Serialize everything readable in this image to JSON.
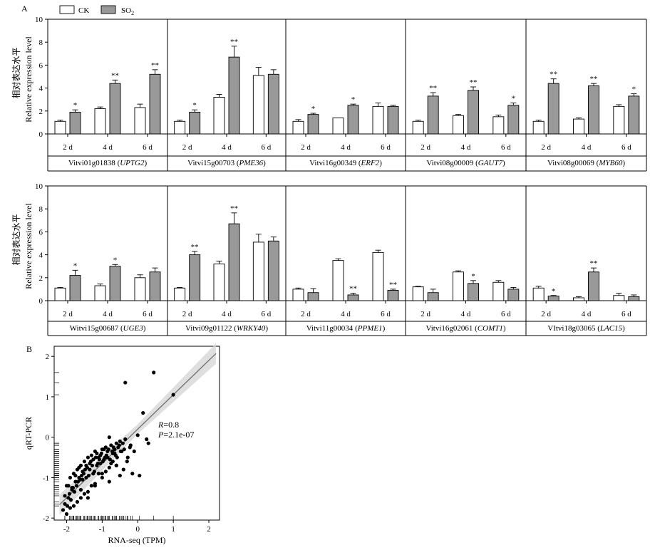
{
  "figure": {
    "panel_a_label": "A",
    "panel_b_label": "B",
    "ylabel_cn": "相对表达水平",
    "ylabel_en": "Relative expression level",
    "legend": [
      {
        "label": "CK",
        "color": "#ffffff"
      },
      {
        "label": "SO",
        "sub": "2",
        "color": "#999999"
      }
    ],
    "days": [
      "2 d",
      "4 d",
      "6 d"
    ],
    "yticks": [
      "0",
      "2",
      "4",
      "6",
      "8",
      "10"
    ]
  },
  "chart_data": [
    {
      "type": "bar",
      "title": "",
      "ylabel": "Relative expression level",
      "ylim": [
        0,
        10
      ],
      "categories": [
        "2 d",
        "4 d",
        "6 d"
      ],
      "series_names": [
        "CK",
        "SO2"
      ],
      "panels": [
        {
          "gene_id": "Vitvi01g01838",
          "gene_name": "UPTG2",
          "ck": [
            1.1,
            2.2,
            2.3
          ],
          "ck_err": [
            0.1,
            0.15,
            0.3
          ],
          "so2": [
            1.9,
            4.4,
            5.2
          ],
          "so2_err": [
            0.2,
            0.3,
            0.4
          ],
          "sig": [
            "*",
            "**",
            "**"
          ]
        },
        {
          "gene_id": "Vitvi15g00703",
          "gene_name": "PME36",
          "ck": [
            1.1,
            3.2,
            5.1
          ],
          "ck_err": [
            0.1,
            0.25,
            0.7
          ],
          "so2": [
            1.9,
            6.7,
            5.2
          ],
          "so2_err": [
            0.2,
            0.95,
            0.4
          ],
          "sig": [
            "*",
            "**",
            ""
          ]
        },
        {
          "gene_id": "Vitvi16g00349",
          "gene_name": "ERF2",
          "ck": [
            1.1,
            1.4,
            2.4
          ],
          "ck_err": [
            0.15,
            0.0,
            0.3
          ],
          "so2": [
            1.7,
            2.5,
            2.4
          ],
          "so2_err": [
            0.1,
            0.1,
            0.1
          ],
          "sig": [
            "*",
            "*",
            ""
          ]
        },
        {
          "gene_id": "Vitvi08g00009",
          "gene_name": "GAUT7",
          "ck": [
            1.1,
            1.6,
            1.5
          ],
          "ck_err": [
            0.1,
            0.1,
            0.15
          ],
          "so2": [
            3.3,
            3.8,
            2.5
          ],
          "so2_err": [
            0.3,
            0.3,
            0.2
          ],
          "sig": [
            "**",
            "**",
            "*"
          ]
        },
        {
          "gene_id": "Vitvi08g00069",
          "gene_name": "MYB60",
          "ck": [
            1.1,
            1.3,
            2.4
          ],
          "ck_err": [
            0.1,
            0.1,
            0.15
          ],
          "so2": [
            4.4,
            4.2,
            3.3
          ],
          "so2_err": [
            0.4,
            0.2,
            0.2
          ],
          "sig": [
            "**",
            "**",
            "*"
          ]
        },
        {
          "gene_id": "Witvi15g00687",
          "gene_name": "UGE3",
          "ck": [
            1.1,
            1.3,
            2.0
          ],
          "ck_err": [
            0.05,
            0.15,
            0.25
          ],
          "so2": [
            2.2,
            3.0,
            2.5
          ],
          "so2_err": [
            0.45,
            0.15,
            0.35
          ],
          "sig": [
            "*",
            "*",
            ""
          ]
        },
        {
          "gene_id": "Vitvi09g01122",
          "gene_name": "WRKY40",
          "ck": [
            1.1,
            3.2,
            5.1
          ],
          "ck_err": [
            0.05,
            0.25,
            0.7
          ],
          "so2": [
            4.0,
            6.7,
            5.2
          ],
          "so2_err": [
            0.3,
            0.95,
            0.35
          ],
          "sig": [
            "**",
            "**",
            ""
          ]
        },
        {
          "gene_id": "Vitvi11g00034",
          "gene_name": "PPME1",
          "ck": [
            1.0,
            3.5,
            4.2
          ],
          "ck_err": [
            0.1,
            0.15,
            0.2
          ],
          "so2": [
            0.7,
            0.5,
            0.9
          ],
          "so2_err": [
            0.35,
            0.15,
            0.1
          ],
          "sig": [
            "",
            "**",
            "**"
          ]
        },
        {
          "gene_id": "Vitvi16g02061",
          "gene_name": "COMT1",
          "ck": [
            1.2,
            2.5,
            1.6
          ],
          "ck_err": [
            0.05,
            0.1,
            0.15
          ],
          "so2": [
            0.7,
            1.5,
            1.0
          ],
          "so2_err": [
            0.3,
            0.25,
            0.15
          ],
          "sig": [
            "",
            "*",
            ""
          ]
        },
        {
          "gene_id": "VItvi18g03065",
          "gene_name": "LAC15",
          "ck": [
            1.1,
            0.25,
            0.45
          ],
          "ck_err": [
            0.15,
            0.1,
            0.2
          ],
          "so2": [
            0.4,
            2.5,
            0.35
          ],
          "so2_err": [
            0.05,
            0.35,
            0.15
          ],
          "sig": [
            "*",
            "**",
            ""
          ]
        }
      ]
    },
    {
      "type": "scatter",
      "title": "",
      "xlabel": "RNA-seq (TPM)",
      "ylabel": "qRT-PCR",
      "xlim": [
        -2.35,
        2.3
      ],
      "ylim": [
        -2.05,
        2.25
      ],
      "xticks": [
        "-2",
        "-1",
        "0",
        "1",
        "2"
      ],
      "yticks": [
        "-2",
        "-1",
        "0",
        "1",
        "2"
      ],
      "annotation_r_label": "R",
      "annotation_r_value": "=0.8",
      "annotation_p_label": "P",
      "annotation_p_value": "=2.1e-07",
      "fit": {
        "slope": 0.85,
        "intercept": 0.2
      },
      "points_x": [
        1.0,
        0.0,
        -0.35,
        0.15,
        0.45,
        0.25,
        -0.2,
        -0.35,
        -0.6,
        -0.8,
        -1.0,
        -1.2,
        -1.4,
        -1.6,
        -1.8,
        -2.0,
        -1.9,
        -1.7,
        -1.5,
        -1.3,
        -1.1,
        -0.9,
        -0.7,
        -0.5,
        -0.3,
        -1.95,
        -1.85,
        -1.75,
        -1.65,
        -1.55,
        -1.45,
        -1.35,
        -1.25,
        -1.15,
        -1.05,
        -0.95,
        -0.85,
        -0.75,
        -0.65,
        -0.55,
        -0.45,
        -2.1,
        -2.05,
        -1.98,
        -1.92,
        -1.88,
        -1.82,
        -1.78,
        -1.72,
        -1.68,
        -1.62,
        -1.58,
        -1.52,
        -1.48,
        -1.42,
        -1.38,
        -1.32,
        -1.28,
        -1.22,
        -1.18,
        -1.12,
        -1.08,
        -1.02,
        -0.98,
        -0.92,
        -0.88,
        -0.82,
        -0.78,
        -0.72,
        -0.68,
        -0.62,
        -0.58,
        -0.52,
        -0.48,
        -0.42,
        -0.38,
        -0.28,
        -0.22,
        -0.15,
        -0.1,
        0.05,
        0.3,
        -1.6,
        -1.4,
        -1.2,
        -1.0,
        -0.8,
        -0.6,
        -0.4,
        -1.9,
        -1.7,
        -1.5,
        -1.3,
        -1.1,
        -0.9,
        -0.7,
        -0.5,
        -2.0,
        -1.8,
        -1.6,
        -1.4,
        -1.2,
        -1.0,
        -0.8,
        -0.6,
        -1.95,
        -1.75,
        -1.55,
        -1.35,
        -1.15,
        -0.95,
        -0.75,
        -2.05,
        -1.85,
        -1.65,
        -1.45,
        -1.25,
        -1.05,
        -0.85,
        -0.65
      ],
      "points_y": [
        1.05,
        0.05,
        1.35,
        0.6,
        1.6,
        -0.05,
        -0.2,
        -0.05,
        -0.15,
        0.0,
        -0.3,
        -0.35,
        -0.5,
        -0.7,
        -0.9,
        -1.2,
        -1.0,
        -0.8,
        -0.6,
        -0.45,
        -0.5,
        -0.25,
        -0.4,
        -0.1,
        -0.6,
        -1.5,
        -1.3,
        -1.1,
        -1.0,
        -0.85,
        -0.7,
        -0.65,
        -0.55,
        -0.4,
        -0.45,
        -0.3,
        -0.35,
        -0.2,
        -0.3,
        -0.25,
        -0.35,
        -1.8,
        -1.65,
        -1.7,
        -1.4,
        -1.55,
        -1.25,
        -1.35,
        -1.2,
        -1.1,
        -1.05,
        -0.95,
        -0.9,
        -0.8,
        -0.75,
        -0.95,
        -0.6,
        -0.7,
        -0.85,
        -0.5,
        -0.65,
        -0.55,
        -0.4,
        -0.6,
        -0.5,
        -0.45,
        -0.3,
        -0.55,
        -0.35,
        -0.25,
        -0.45,
        -0.5,
        -0.2,
        -0.35,
        -0.15,
        -0.3,
        -0.5,
        -0.25,
        -0.9,
        -0.35,
        -0.95,
        -0.15,
        -1.3,
        -1.5,
        -1.2,
        -1.0,
        -1.1,
        -0.7,
        -0.8,
        -1.75,
        -1.6,
        -1.4,
        -1.2,
        -0.9,
        -0.85,
        -0.6,
        -0.95,
        -1.9,
        -1.7,
        -1.5,
        -1.35,
        -1.15,
        -0.9,
        -0.75,
        -0.7,
        -1.2,
        -0.95,
        -1.05,
        -0.8,
        -0.7,
        -0.55,
        -0.65,
        -1.45,
        -1.25,
        -0.75,
        -1.0,
        -0.9,
        -0.65,
        -0.5,
        -0.4
      ]
    }
  ]
}
